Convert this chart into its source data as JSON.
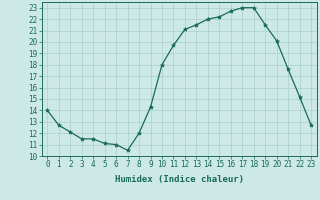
{
  "x": [
    0,
    1,
    2,
    3,
    4,
    5,
    6,
    7,
    8,
    9,
    10,
    11,
    12,
    13,
    14,
    15,
    16,
    17,
    18,
    19,
    20,
    21,
    22,
    23
  ],
  "y": [
    14.0,
    12.7,
    12.1,
    11.5,
    11.5,
    11.1,
    11.0,
    10.5,
    12.0,
    14.3,
    18.0,
    19.7,
    21.1,
    21.5,
    22.0,
    22.2,
    22.7,
    23.0,
    23.0,
    21.5,
    20.1,
    17.6,
    15.2,
    12.7
  ],
  "line_color": "#1a6b5a",
  "marker": "*",
  "marker_size": 3,
  "bg_color": "#cce9e7",
  "grid_color": "#aad0ce",
  "xlabel": "Humidex (Indice chaleur)",
  "xlim": [
    -0.5,
    23.5
  ],
  "ylim": [
    10,
    23.5
  ],
  "yticks": [
    10,
    11,
    12,
    13,
    14,
    15,
    16,
    17,
    18,
    19,
    20,
    21,
    22,
    23
  ],
  "xticks": [
    0,
    1,
    2,
    3,
    4,
    5,
    6,
    7,
    8,
    9,
    10,
    11,
    12,
    13,
    14,
    15,
    16,
    17,
    18,
    19,
    20,
    21,
    22,
    23
  ],
  "fg_color": "#1a6b5a",
  "label_fontsize": 6.5,
  "tick_fontsize": 5.5
}
